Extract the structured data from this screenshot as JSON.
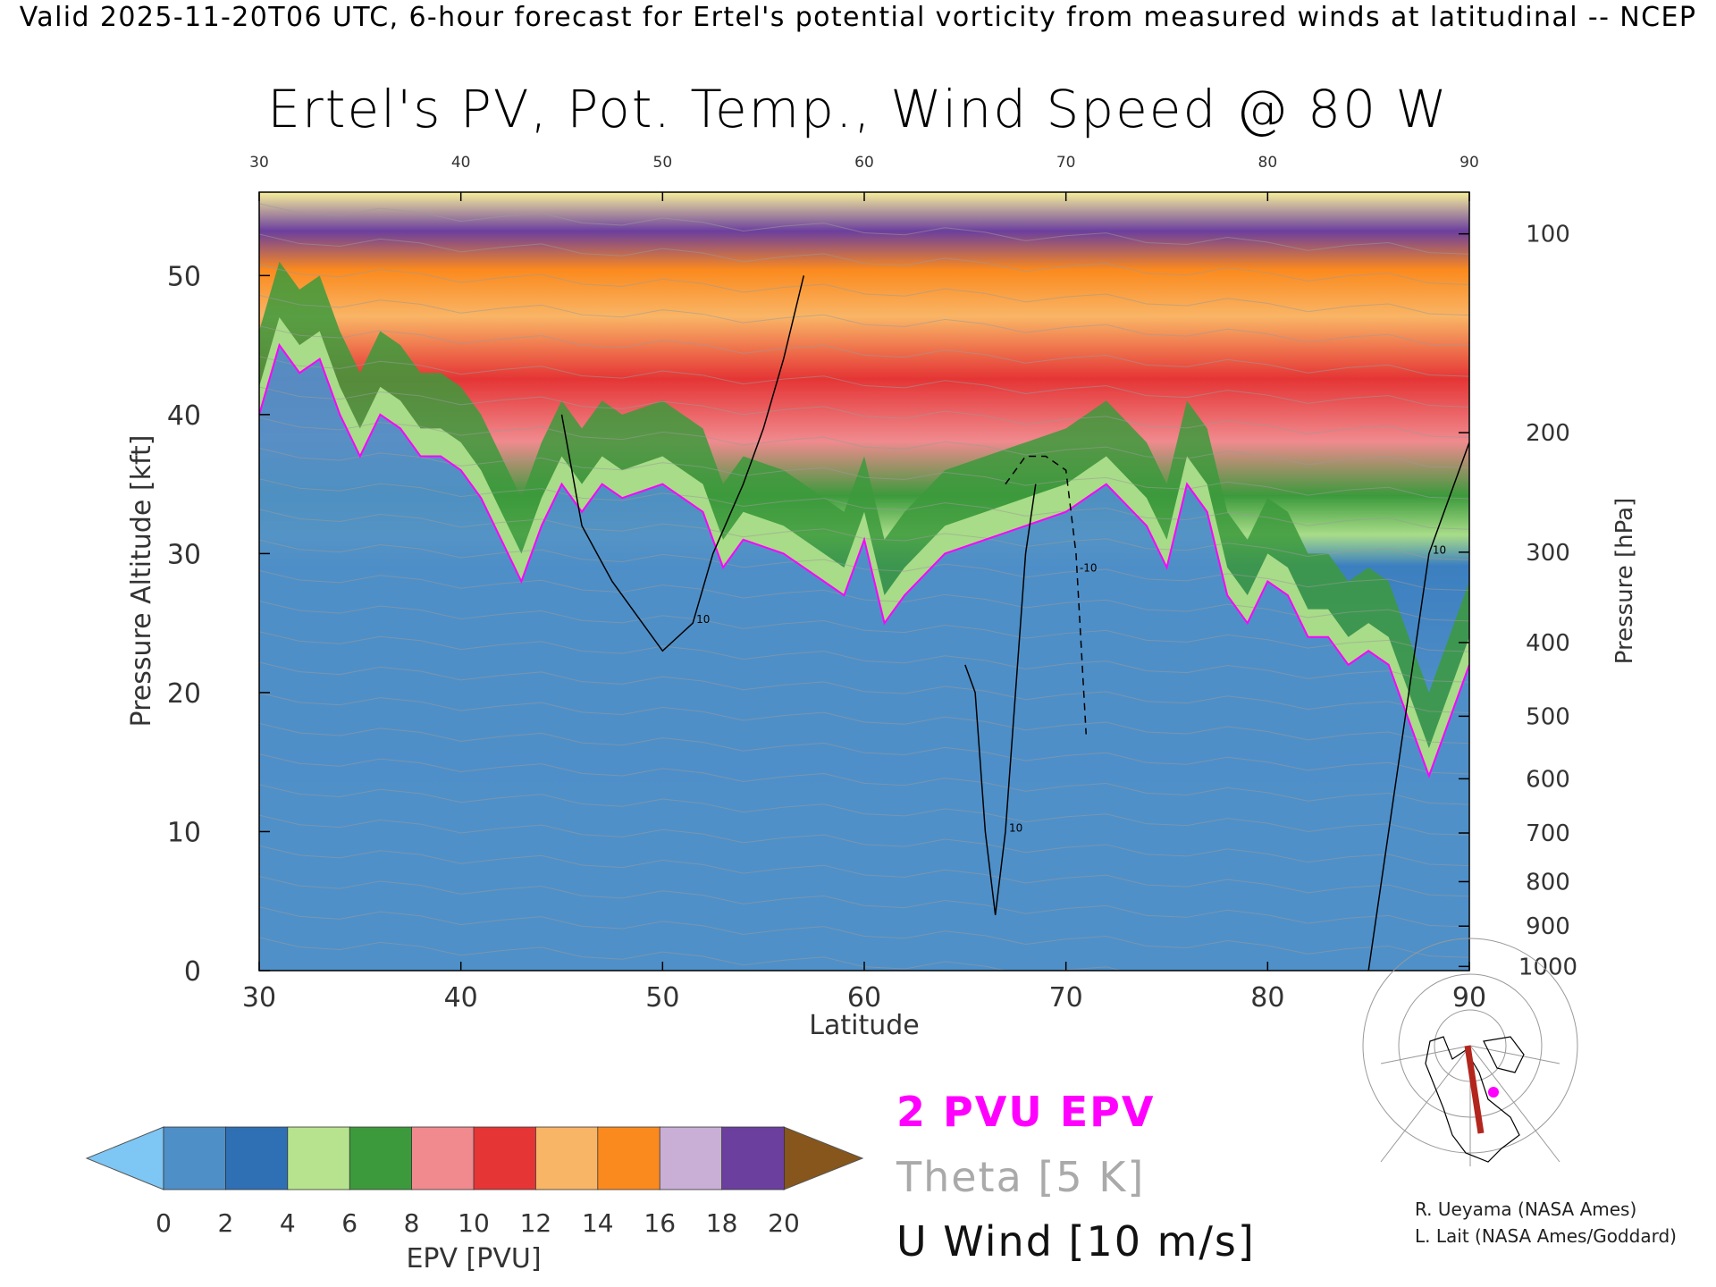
{
  "header": "Valid 2025-11-20T06 UTC, 6-hour forecast for Ertel's potential vorticity from measured winds at latitudinal -- NCEP",
  "chart_data": {
    "type": "heatmap",
    "title": "Ertel's PV, Pot. Temp., Wind Speed @ 80 W",
    "xlabel": "Latitude",
    "ylabel": "Pressure Altitude [kft]",
    "y2label": "Pressure [hPa]",
    "xlim": [
      30,
      90
    ],
    "ylim": [
      0,
      56
    ],
    "xticks": [
      "30",
      "40",
      "50",
      "60",
      "70",
      "80",
      "90"
    ],
    "yticks": [
      "0",
      "10",
      "20",
      "30",
      "40",
      "50"
    ],
    "pressure_ticks": [
      {
        "label": "100",
        "kft": 53.0
      },
      {
        "label": "200",
        "kft": 38.7
      },
      {
        "label": "300",
        "kft": 30.1
      },
      {
        "label": "400",
        "kft": 23.6
      },
      {
        "label": "500",
        "kft": 18.3
      },
      {
        "label": "600",
        "kft": 13.8
      },
      {
        "label": "700",
        "kft": 9.9
      },
      {
        "label": "800",
        "kft": 6.4
      },
      {
        "label": "900",
        "kft": 3.2
      },
      {
        "label": "1000",
        "kft": 0.3
      }
    ],
    "tropopause_2pvu": {
      "name": "2 PVU EPV",
      "lat": [
        30,
        31,
        32,
        33,
        34,
        35,
        36,
        37,
        38,
        39,
        40,
        41,
        42,
        43,
        44,
        45,
        46,
        47,
        48,
        50,
        52,
        53,
        54,
        56,
        58,
        59,
        60,
        61,
        62,
        64,
        66,
        68,
        70,
        72,
        74,
        75,
        76,
        77,
        78,
        79,
        80,
        81,
        82,
        83,
        84,
        85,
        86,
        87,
        88,
        89,
        90
      ],
      "kft": [
        40,
        45,
        43,
        44,
        40,
        37,
        40,
        39,
        37,
        37,
        36,
        34,
        31,
        28,
        32,
        35,
        33,
        35,
        34,
        35,
        33,
        29,
        31,
        30,
        28,
        27,
        31,
        25,
        27,
        30,
        31,
        32,
        33,
        35,
        32,
        29,
        35,
        33,
        27,
        25,
        28,
        27,
        24,
        24,
        22,
        23,
        22,
        18,
        14,
        18,
        22
      ]
    },
    "wind_contours": [
      {
        "label": "10",
        "lat": [
          45,
          46,
          47.5,
          49,
          50,
          51.5,
          52.5,
          54,
          55,
          56,
          57
        ],
        "kft": [
          40,
          32,
          28,
          25,
          23,
          25,
          30,
          35,
          39,
          44,
          50
        ]
      },
      {
        "label": "10",
        "lat": [
          65,
          65.5,
          66,
          66.5,
          67,
          67.5,
          68,
          68.5
        ],
        "kft": [
          22,
          20,
          10,
          4,
          10,
          20,
          30,
          35
        ]
      },
      {
        "label": "10",
        "lat": [
          85,
          86,
          87,
          88,
          89,
          90
        ],
        "kft": [
          0,
          10,
          20,
          30,
          34,
          38
        ]
      }
    ],
    "dashed_contour": {
      "label": "-10",
      "lat": [
        67,
        68,
        69,
        70,
        70.5,
        71
      ],
      "kft": [
        35,
        37,
        37,
        36,
        30,
        17
      ]
    },
    "colorbar": {
      "label": "EPV [PVU]",
      "ticks": [
        "0",
        "2",
        "4",
        "6",
        "8",
        "10",
        "12",
        "14",
        "16",
        "18",
        "20"
      ],
      "colors": [
        "#4f8fc8",
        "#2f6fb4",
        "#b8e38e",
        "#3c9a3c",
        "#f08a8e",
        "#e53535",
        "#f9b566",
        "#fb8a1e",
        "#c9aed6",
        "#6b3f9e",
        "#f6ee9a"
      ],
      "under_color": "#7ec6f4",
      "over_color": "#87561c"
    },
    "legend": {
      "pvu": "2 PVU EPV",
      "pvu_color": "#ff00ff",
      "theta": "Theta [5 K]",
      "theta_color": "#aaaaaa",
      "uwind": "U Wind [10 m/s]"
    }
  },
  "credits": [
    "R. Ueyama (NASA Ames)",
    "L. Lait (NASA Ames/Goddard)"
  ]
}
